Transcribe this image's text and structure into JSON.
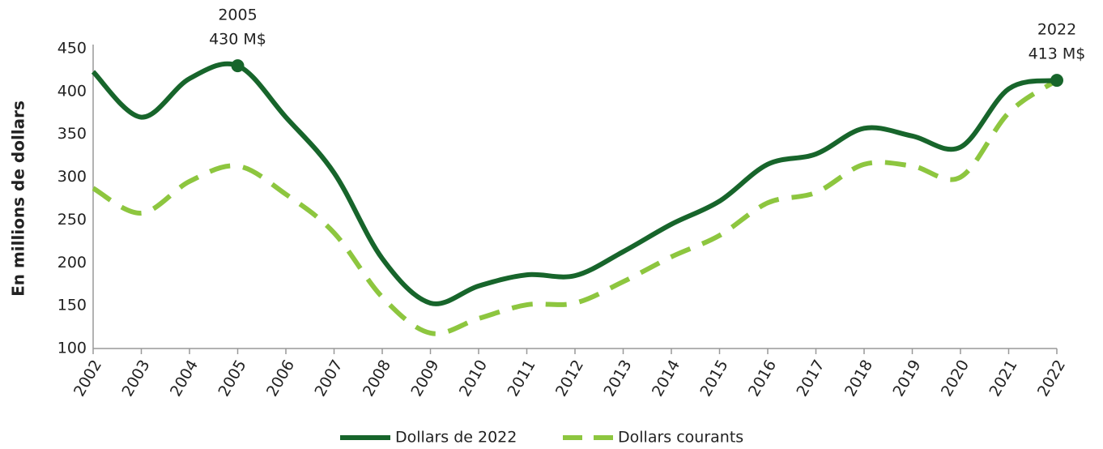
{
  "chart_data": {
    "type": "line",
    "y_label": "En millions de dollars",
    "categories": [
      "2002",
      "2003",
      "2004",
      "2005",
      "2006",
      "2007",
      "2008",
      "2009",
      "2010",
      "2011",
      "2012",
      "2013",
      "2014",
      "2015",
      "2016",
      "2017",
      "2018",
      "2019",
      "2020",
      "2021",
      "2022"
    ],
    "series": [
      {
        "name": "Dollars de 2022",
        "color": "#17652b",
        "dash": false,
        "values": [
          423,
          370,
          415,
          430,
          370,
          305,
          205,
          153,
          173,
          186,
          185,
          213,
          245,
          272,
          315,
          327,
          357,
          348,
          335,
          403,
          413
        ]
      },
      {
        "name": "Dollars courants",
        "color": "#8dc63f",
        "dash": true,
        "values": [
          287,
          258,
          295,
          313,
          280,
          235,
          160,
          118,
          135,
          151,
          153,
          178,
          207,
          232,
          270,
          282,
          315,
          313,
          300,
          375,
          413
        ]
      }
    ],
    "annotations": [
      {
        "lines": [
          "2005",
          "430 M$"
        ]
      },
      {
        "lines": [
          "2022",
          "413 M$"
        ]
      }
    ],
    "ylim": [
      100,
      450
    ],
    "yticks": [
      100,
      150,
      200,
      250,
      300,
      350,
      400,
      450
    ],
    "grid": false
  }
}
